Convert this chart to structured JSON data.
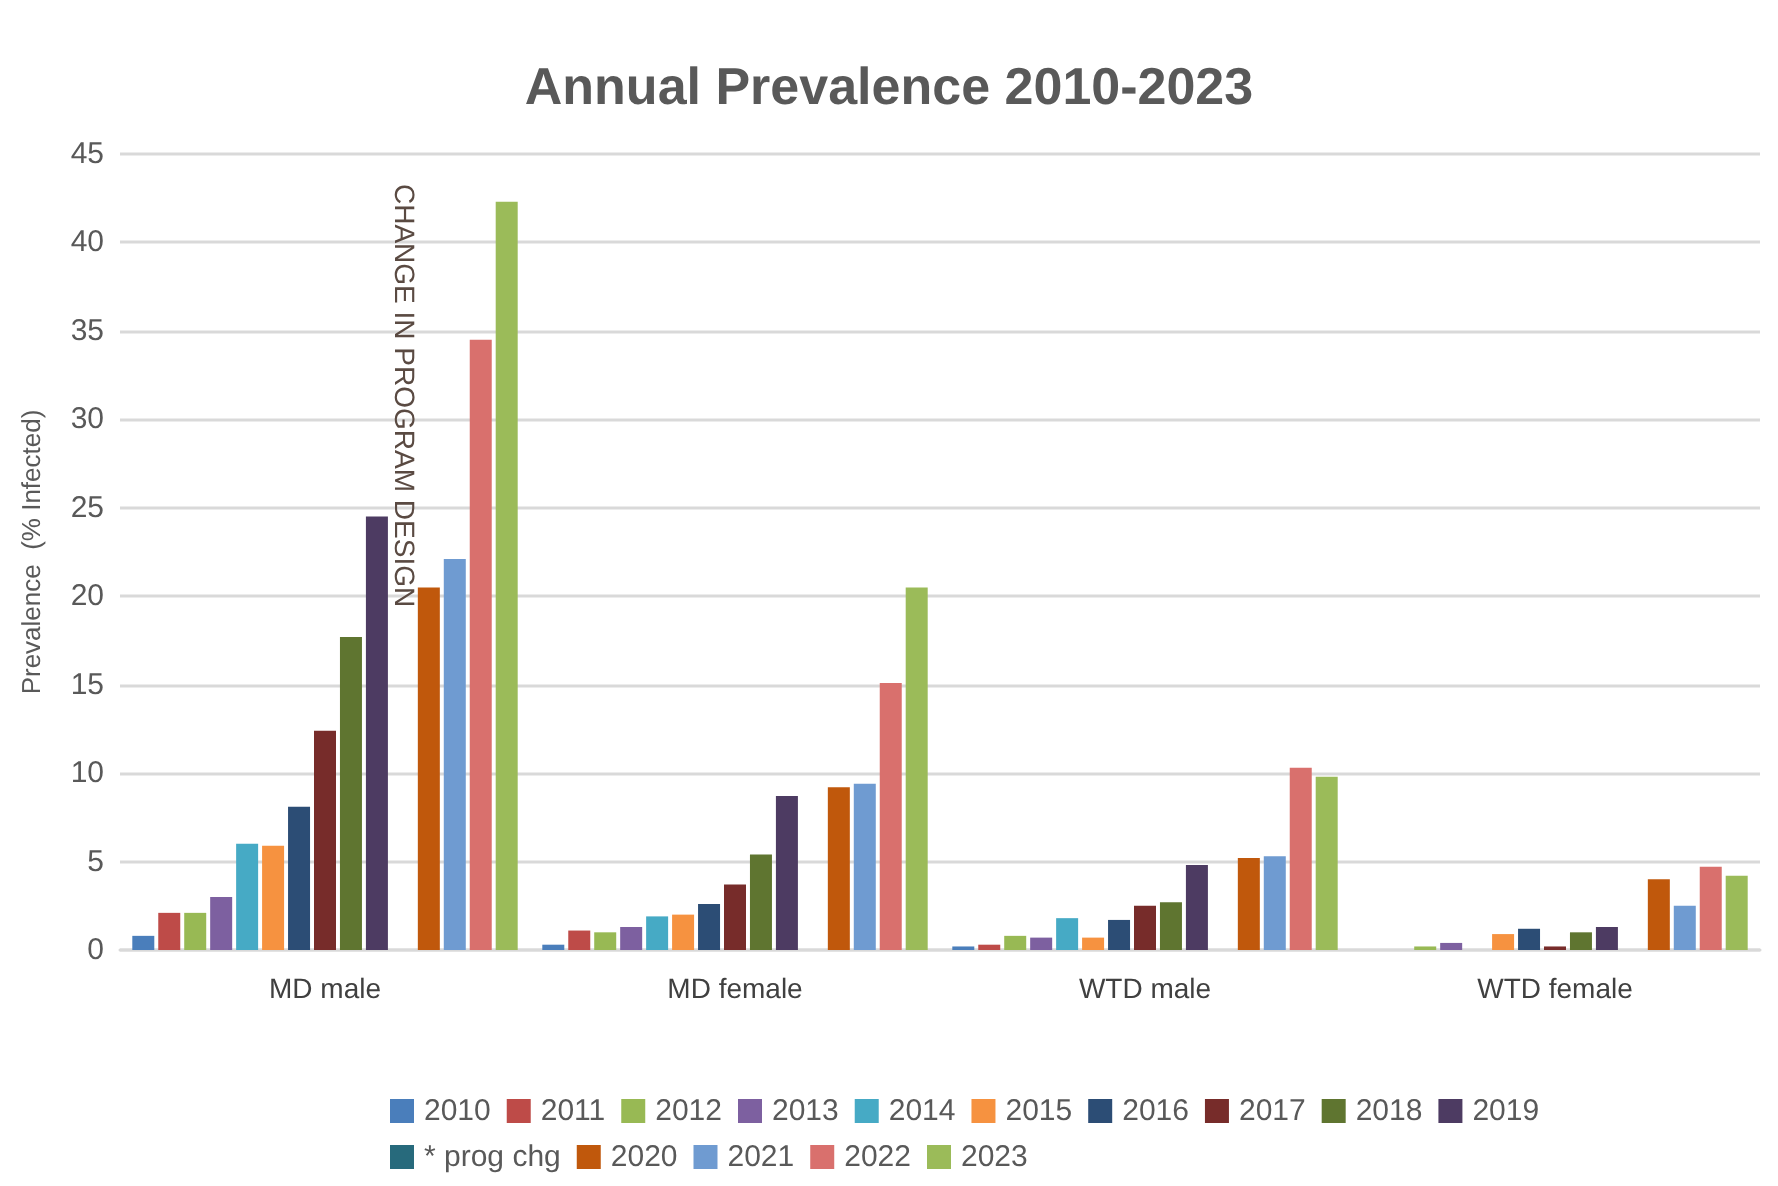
{
  "chart_data": {
    "type": "bar",
    "title": "Annual Prevalence 2010-2023",
    "ylabel": "Prevalence  (% Infected)",
    "categories": [
      "MD male",
      "MD female",
      "WTD male",
      "WTD female"
    ],
    "series": [
      {
        "name": "2010",
        "color": "#4a7ebb",
        "values": [
          0.8,
          0.3,
          0.2,
          null
        ]
      },
      {
        "name": "2011",
        "color": "#be4b48",
        "values": [
          2.1,
          1.1,
          0.3,
          null
        ]
      },
      {
        "name": "2012",
        "color": "#98b954",
        "values": [
          2.1,
          1.0,
          0.8,
          0.2
        ]
      },
      {
        "name": "2013",
        "color": "#7d60a0",
        "values": [
          3.0,
          1.3,
          0.7,
          0.4
        ]
      },
      {
        "name": "2014",
        "color": "#46aac5",
        "values": [
          6.0,
          1.9,
          1.8,
          null
        ]
      },
      {
        "name": "2015",
        "color": "#f69240",
        "values": [
          5.9,
          2.0,
          0.7,
          0.9
        ]
      },
      {
        "name": "2016",
        "color": "#2c4d75",
        "values": [
          8.1,
          2.6,
          1.7,
          1.2
        ]
      },
      {
        "name": "2017",
        "color": "#772c2a",
        "values": [
          12.4,
          3.7,
          2.5,
          0.2
        ]
      },
      {
        "name": "2018",
        "color": "#5f7530",
        "values": [
          17.7,
          5.4,
          2.7,
          1.0
        ]
      },
      {
        "name": "2019",
        "color": "#4d3b62",
        "values": [
          24.5,
          8.7,
          4.8,
          1.3
        ]
      },
      {
        "name": "* prog chg",
        "color": "#276a7c",
        "values": [
          null,
          null,
          null,
          null
        ]
      },
      {
        "name": "2020",
        "color": "#c0580c",
        "values": [
          20.5,
          9.2,
          5.2,
          4.0
        ]
      },
      {
        "name": "2021",
        "color": "#6f9bd1",
        "values": [
          22.1,
          9.4,
          5.3,
          2.5
        ]
      },
      {
        "name": "2022",
        "color": "#d9706d",
        "values": [
          34.5,
          15.1,
          10.3,
          4.7
        ]
      },
      {
        "name": "2023",
        "color": "#9bbb59",
        "values": [
          42.3,
          20.5,
          9.8,
          4.2
        ]
      }
    ],
    "ylim": [
      0,
      45
    ],
    "yticks": [
      0,
      5,
      10,
      15,
      20,
      25,
      30,
      35,
      40,
      45
    ],
    "grid": "y",
    "legend": "bottom",
    "annotations": [
      "CHANGE IN PROGRAM DESIGN"
    ]
  }
}
